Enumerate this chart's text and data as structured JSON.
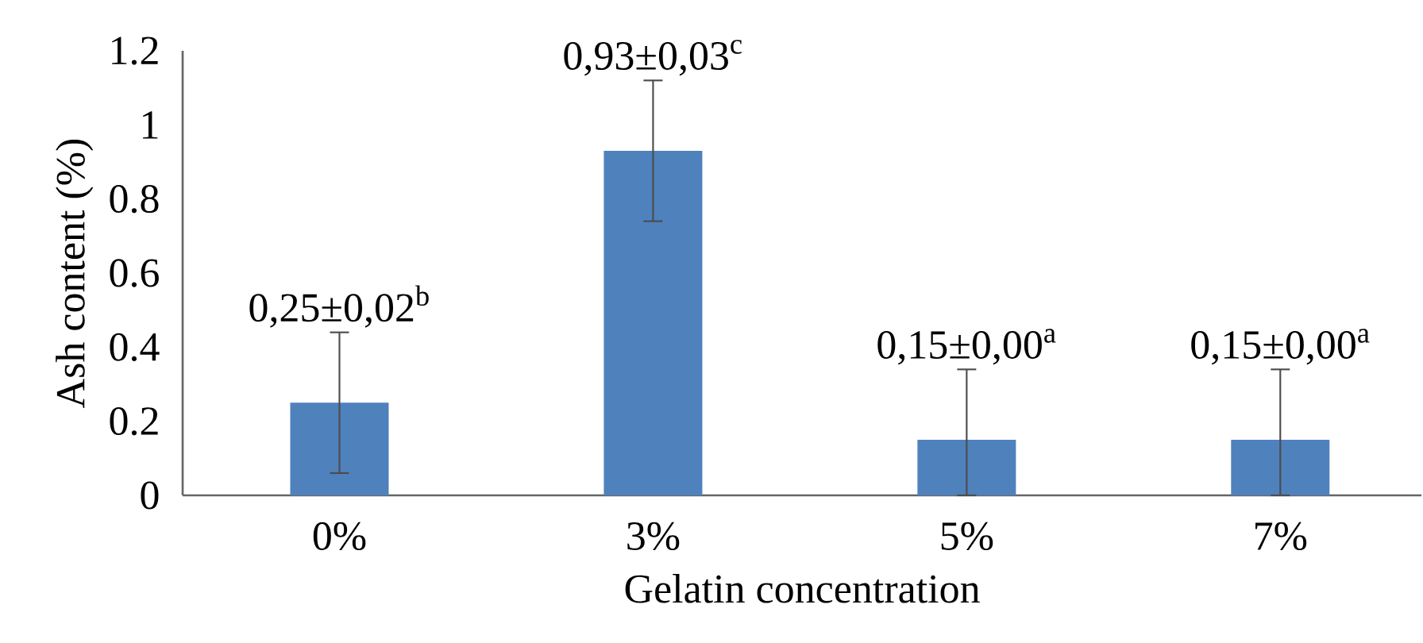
{
  "chart_data": {
    "type": "bar",
    "xlabel": "Gelatin concentration",
    "ylabel": "Ash content (%)",
    "categories": [
      "0%",
      "3%",
      "5%",
      "7%"
    ],
    "values": [
      0.25,
      0.93,
      0.15,
      0.15
    ],
    "color": "#4f81bd",
    "errors": [
      0.19,
      0.19,
      [
        0,
        0.34
      ],
      [
        0,
        0.34
      ]
    ],
    "value_labels": [
      "0,25±0,02$^{b}$",
      "0,93±0,03$^{c}$",
      "0,15±0,00$^{a}$",
      "0,15±0,00$^{a}$"
    ],
    "ylim": [
      0,
      1.2
    ],
    "yticks": [
      0,
      0.2,
      0.4,
      0.6,
      0.8,
      1,
      1.2
    ],
    "grid": false
  }
}
